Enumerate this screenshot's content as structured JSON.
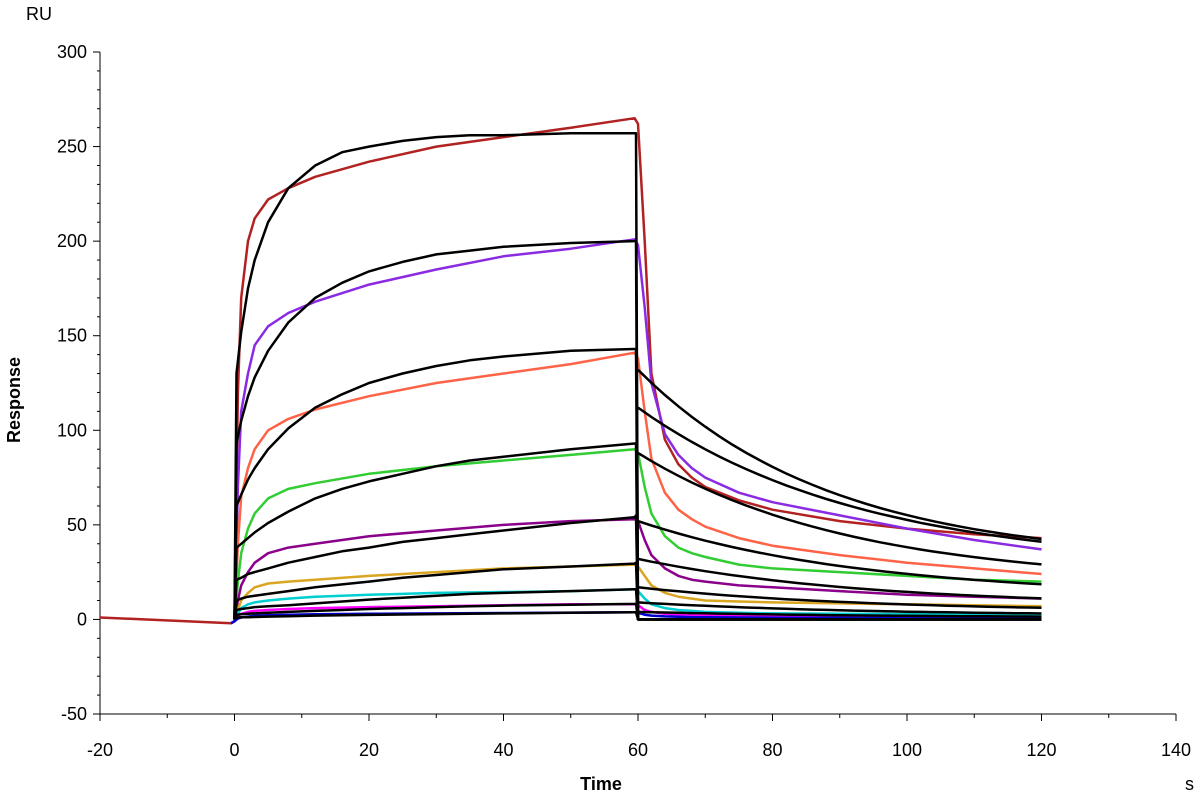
{
  "chart_data": {
    "type": "line",
    "title": "",
    "xlabel": "Time",
    "ylabel": "Response",
    "x_unit": "s",
    "y_unit": "RU",
    "xlim": [
      -20,
      140
    ],
    "ylim": [
      -50,
      300
    ],
    "x_ticks": [
      -20,
      0,
      20,
      40,
      60,
      80,
      100,
      120,
      140
    ],
    "y_ticks": [
      -50,
      0,
      50,
      100,
      150,
      200,
      250,
      300
    ],
    "grid": false,
    "legend": "none",
    "series": [
      {
        "color": "#b22222",
        "x": [
          -20,
          -0.5,
          0,
          0.5,
          1,
          2,
          3,
          5,
          8,
          12,
          20,
          30,
          40,
          50,
          59.5,
          60,
          61,
          62,
          64,
          66,
          68,
          70,
          75,
          80,
          90,
          100,
          110,
          120
        ],
        "y": [
          1,
          -2,
          -1,
          120,
          170,
          200,
          212,
          222,
          228,
          234,
          242,
          250,
          255,
          260,
          265,
          262,
          200,
          130,
          95,
          82,
          75,
          70,
          63,
          58,
          52,
          48,
          45,
          43
        ]
      },
      {
        "color": "#8a2be2",
        "x": [
          -0.5,
          0,
          0.5,
          1,
          2,
          3,
          5,
          8,
          12,
          20,
          30,
          40,
          50,
          59.5,
          60,
          61,
          62,
          64,
          66,
          68,
          70,
          75,
          80,
          90,
          100,
          110,
          120
        ],
        "y": [
          -2,
          -1,
          70,
          110,
          130,
          145,
          155,
          162,
          168,
          177,
          185,
          192,
          196,
          201,
          198,
          165,
          125,
          98,
          87,
          80,
          75,
          67,
          62,
          55,
          48,
          42,
          37
        ]
      },
      {
        "color": "#ff6347",
        "x": [
          -0.5,
          0,
          0.5,
          1,
          2,
          3,
          5,
          8,
          12,
          20,
          30,
          40,
          50,
          59.5,
          60,
          61,
          62,
          64,
          66,
          68,
          70,
          75,
          80,
          90,
          100,
          110,
          120
        ],
        "y": [
          -2,
          -1,
          40,
          65,
          80,
          90,
          100,
          106,
          111,
          118,
          125,
          130,
          135,
          141,
          138,
          110,
          85,
          67,
          58,
          53,
          49,
          43,
          39,
          34,
          30,
          27,
          24
        ]
      },
      {
        "color": "#32cd32",
        "x": [
          -0.5,
          0,
          0.5,
          1,
          2,
          3,
          5,
          8,
          12,
          20,
          30,
          40,
          50,
          59.5,
          60,
          61,
          62,
          64,
          66,
          68,
          70,
          75,
          80,
          90,
          100,
          110,
          120
        ],
        "y": [
          -2,
          -1,
          20,
          35,
          48,
          56,
          64,
          69,
          72,
          77,
          81,
          84,
          87,
          90,
          88,
          70,
          56,
          44,
          38,
          35,
          33,
          29,
          27,
          25,
          23,
          21,
          20
        ]
      },
      {
        "color": "#8b008b",
        "x": [
          -0.5,
          0,
          0.5,
          1,
          2,
          3,
          5,
          8,
          12,
          20,
          30,
          40,
          50,
          59.5,
          60,
          61,
          62,
          64,
          66,
          68,
          70,
          75,
          80,
          90,
          100,
          110,
          120
        ],
        "y": [
          -2,
          -1,
          10,
          18,
          25,
          30,
          35,
          38,
          40,
          44,
          47,
          50,
          52,
          53,
          52,
          42,
          34,
          27,
          23,
          21,
          20,
          18,
          17,
          15,
          13,
          12,
          11
        ]
      },
      {
        "color": "#daa520",
        "x": [
          -0.5,
          0,
          0.5,
          1,
          2,
          3,
          5,
          8,
          12,
          20,
          30,
          40,
          50,
          59.5,
          60,
          61,
          62,
          64,
          66,
          68,
          70,
          75,
          80,
          90,
          100,
          110,
          120
        ],
        "y": [
          -2,
          -1,
          5,
          10,
          14,
          17,
          19,
          20,
          21,
          23,
          25,
          27,
          28,
          29,
          28,
          23,
          18,
          14,
          12,
          11,
          10,
          9.5,
          9,
          8.5,
          8,
          7.5,
          7
        ]
      },
      {
        "color": "#00ced1",
        "x": [
          -0.5,
          0,
          0.5,
          1,
          2,
          3,
          5,
          8,
          12,
          20,
          30,
          40,
          50,
          59.5,
          60,
          61,
          62,
          64,
          66,
          68,
          70,
          75,
          80,
          90,
          100,
          110,
          120
        ],
        "y": [
          -2,
          -1,
          3,
          6,
          8,
          9,
          10,
          11,
          12,
          13,
          14,
          14.5,
          15,
          16,
          15,
          11,
          8,
          6,
          5,
          4.5,
          4,
          3.5,
          3.2,
          3,
          2.8,
          2.6,
          2.5
        ]
      },
      {
        "color": "#ff00ff",
        "x": [
          -0.5,
          0,
          0.5,
          1,
          2,
          3,
          5,
          8,
          12,
          20,
          30,
          40,
          50,
          59.5,
          60,
          61,
          62,
          64,
          66,
          68,
          70,
          75,
          80,
          90,
          100,
          110,
          120
        ],
        "y": [
          -2,
          -1,
          2,
          3,
          4,
          4.5,
          5,
          5.5,
          6,
          6.5,
          7,
          7.5,
          8,
          8,
          7.5,
          5,
          4,
          3,
          2.5,
          2.2,
          2,
          1.8,
          1.6,
          1.4,
          1.2,
          1.1,
          1
        ]
      },
      {
        "color": "#0000cd",
        "x": [
          -0.5,
          0,
          0.5,
          1,
          2,
          3,
          5,
          8,
          12,
          20,
          30,
          40,
          50,
          59.5,
          60,
          61,
          62,
          64,
          66,
          68,
          70,
          75,
          80,
          90,
          100,
          110,
          120
        ],
        "y": [
          -2,
          -1,
          0.5,
          1,
          1.5,
          2,
          2.2,
          2.5,
          2.7,
          3,
          3.2,
          3.4,
          3.6,
          3.8,
          3.5,
          2.5,
          2,
          1.6,
          1.4,
          1.2,
          1.1,
          1,
          0.9,
          0.8,
          0.7,
          0.6,
          0.5
        ]
      },
      {
        "color": "#000000",
        "x": [
          0,
          0.3,
          1,
          2,
          3,
          5,
          8,
          12,
          16,
          20,
          25,
          30,
          35,
          40,
          50,
          59.5,
          59.7,
          60,
          62,
          65,
          70,
          75,
          80,
          90,
          100,
          110,
          120
        ],
        "y": [
          0,
          130,
          152,
          175,
          190,
          210,
          228,
          240,
          247,
          250,
          253,
          255,
          256,
          256,
          257,
          257,
          257,
          0,
          0,
          0,
          0,
          0,
          0,
          0,
          0,
          0,
          0
        ]
      },
      {
        "color": "#000000",
        "x": [
          0,
          0.3,
          1,
          2,
          3,
          5,
          8,
          12,
          16,
          20,
          25,
          30,
          35,
          40,
          50,
          59.5,
          59.7,
          60,
          62,
          65,
          70,
          75,
          80,
          90,
          100,
          110,
          120
        ],
        "y": [
          0,
          93,
          105,
          118,
          128,
          142,
          157,
          170,
          178,
          184,
          189,
          193,
          195,
          197,
          199,
          200,
          200,
          0,
          0,
          0,
          0,
          0,
          0,
          0,
          0,
          0,
          0
        ]
      },
      {
        "color": "#000000",
        "x": [
          0,
          0.3,
          1,
          2,
          3,
          5,
          8,
          12,
          16,
          20,
          25,
          30,
          35,
          40,
          50,
          59.5,
          59.7,
          60,
          62,
          65,
          70,
          75,
          80,
          90,
          100,
          110,
          120
        ],
        "y": [
          0,
          60,
          66,
          74,
          80,
          90,
          101,
          112,
          119,
          125,
          130,
          134,
          137,
          139,
          142,
          143,
          143,
          0,
          0,
          0,
          0,
          0,
          0,
          0,
          0,
          0,
          0
        ]
      },
      {
        "color": "#000000",
        "x": [
          0,
          0.3,
          1,
          2,
          3,
          5,
          8,
          12,
          16,
          20,
          25,
          30,
          35,
          40,
          50,
          59.5,
          59.7,
          60,
          62,
          65,
          70,
          75,
          80,
          90,
          100,
          110,
          120
        ],
        "y": [
          0,
          38,
          40,
          43,
          46,
          51,
          57,
          64,
          69,
          73,
          77,
          81,
          84,
          86,
          90,
          93,
          93,
          0,
          0,
          0,
          0,
          0,
          0,
          0,
          0,
          0,
          0
        ]
      },
      {
        "color": "#000000",
        "x": [
          0,
          0.3,
          1,
          2,
          3,
          5,
          8,
          12,
          16,
          20,
          25,
          30,
          35,
          40,
          50,
          59.5,
          59.7,
          60,
          62,
          65,
          70,
          75,
          80,
          90,
          100,
          110,
          120
        ],
        "y": [
          0,
          21,
          22,
          24,
          25,
          27,
          30,
          33,
          36,
          38,
          41,
          43,
          45,
          47,
          51,
          54,
          55,
          0,
          0,
          0,
          0,
          0,
          0,
          0,
          0,
          0,
          0
        ]
      },
      {
        "color": "#000000",
        "x": [
          0,
          0.3,
          1,
          2,
          3,
          5,
          8,
          12,
          16,
          20,
          25,
          30,
          35,
          40,
          50,
          59.5,
          59.7,
          60,
          62,
          65,
          70,
          75,
          80,
          90,
          100,
          110,
          120
        ],
        "y": [
          0,
          10,
          11,
          12,
          12.5,
          13.5,
          15,
          17,
          18.5,
          20,
          22,
          23.5,
          25,
          26.5,
          28,
          29.5,
          30,
          0,
          0,
          0,
          0,
          0,
          0,
          0,
          0,
          0,
          0
        ]
      },
      {
        "color": "#000000",
        "x": [
          0,
          0.3,
          1,
          2,
          3,
          5,
          8,
          12,
          16,
          20,
          25,
          30,
          35,
          40,
          50,
          59.5,
          59.7,
          60,
          62,
          65,
          70,
          75,
          80,
          90,
          100,
          110,
          120
        ],
        "y": [
          0,
          5,
          5.5,
          6,
          6.5,
          7,
          7.5,
          8.5,
          9.5,
          10.5,
          11.5,
          12.5,
          13.5,
          14,
          15,
          16,
          16,
          0,
          0,
          0,
          0,
          0,
          0,
          0,
          0,
          0,
          0
        ]
      },
      {
        "color": "#000000",
        "x": [
          0,
          0.3,
          1,
          2,
          3,
          5,
          8,
          12,
          16,
          20,
          25,
          30,
          35,
          40,
          50,
          59.5,
          59.7,
          60,
          62,
          65,
          70,
          75,
          80,
          90,
          100,
          110,
          120
        ],
        "y": [
          0,
          2.5,
          2.7,
          3,
          3.2,
          3.5,
          4,
          4.5,
          5,
          5.5,
          6,
          6.5,
          7,
          7.3,
          7.8,
          8.2,
          8.3,
          0,
          0,
          0,
          0,
          0,
          0,
          0,
          0,
          0,
          0
        ]
      },
      {
        "color": "#000000",
        "x": [
          0,
          0.3,
          1,
          2,
          3,
          5,
          8,
          12,
          16,
          20,
          25,
          30,
          35,
          40,
          50,
          59.5,
          59.7,
          60,
          62,
          65,
          70,
          75,
          80,
          90,
          100,
          110,
          120
        ],
        "y": [
          0,
          1,
          1.1,
          1.2,
          1.3,
          1.5,
          1.7,
          2,
          2.2,
          2.4,
          2.6,
          2.8,
          3,
          3.2,
          3.5,
          3.8,
          3.8,
          0,
          0,
          0,
          0,
          0,
          0,
          0,
          0,
          0,
          0
        ]
      }
    ],
    "dissociation_fits": [
      {
        "start": 132,
        "end": 30,
        "k": 0.035
      },
      {
        "start": 112,
        "end": 27,
        "k": 0.03
      },
      {
        "start": 88,
        "end": 19,
        "k": 0.032
      },
      {
        "start": 52,
        "end": 12,
        "k": 0.03
      },
      {
        "start": 32,
        "end": 7,
        "k": 0.03
      },
      {
        "start": 17,
        "end": 4,
        "k": 0.03
      },
      {
        "start": 9,
        "end": 2,
        "k": 0.03
      },
      {
        "start": 4,
        "end": 1,
        "k": 0.03
      }
    ]
  }
}
